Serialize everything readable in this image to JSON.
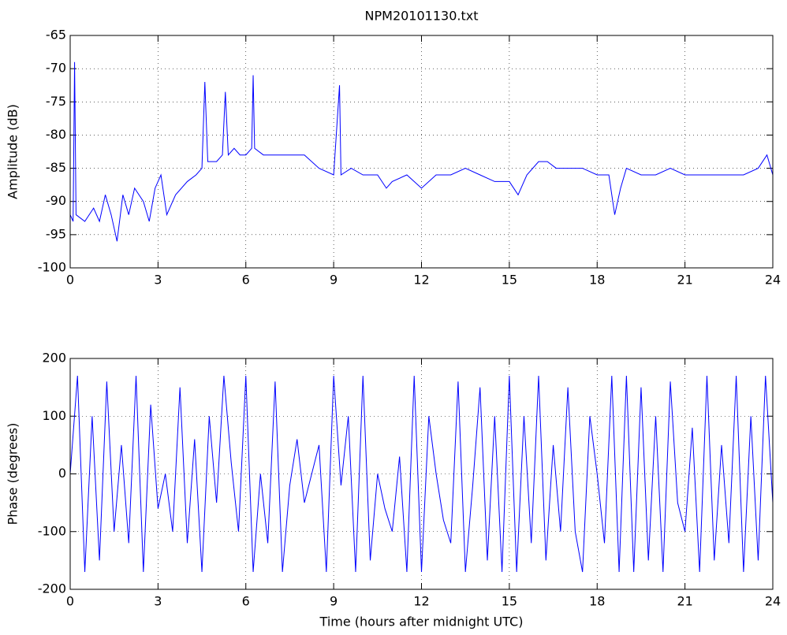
{
  "chart_data": [
    {
      "type": "line",
      "title": "NPM20101130.txt",
      "ylabel": "Amplitude (dB)",
      "x": [
        0,
        0.1,
        0.15,
        0.2,
        0.5,
        0.8,
        1.0,
        1.2,
        1.4,
        1.6,
        1.8,
        2.0,
        2.2,
        2.5,
        2.7,
        2.9,
        3.1,
        3.3,
        3.6,
        4.0,
        4.3,
        4.5,
        4.6,
        4.7,
        5.0,
        5.2,
        5.3,
        5.4,
        5.6,
        5.8,
        6.0,
        6.2,
        6.25,
        6.3,
        6.6,
        7.0,
        7.5,
        8.0,
        8.5,
        9.0,
        9.2,
        9.25,
        9.6,
        10.0,
        10.5,
        10.8,
        11.0,
        11.5,
        12.0,
        12.5,
        13.0,
        13.5,
        14.0,
        14.5,
        15.0,
        15.3,
        15.6,
        16.0,
        16.3,
        16.6,
        17.0,
        17.5,
        18.0,
        18.4,
        18.6,
        18.8,
        19.0,
        19.5,
        20.0,
        20.5,
        21.0,
        21.5,
        22.0,
        22.5,
        23.0,
        23.5,
        23.8,
        24.0
      ],
      "series": [
        {
          "color": "#0000ff",
          "values": [
            -92,
            -93,
            -69,
            -92,
            -93,
            -91,
            -93,
            -89,
            -92,
            -96,
            -89,
            -92,
            -88,
            -90,
            -93,
            -88,
            -86,
            -92,
            -89,
            -87,
            -86,
            -85,
            -72,
            -84,
            -84,
            -83,
            -73.5,
            -83,
            -82,
            -83,
            -83,
            -82,
            -71,
            -82,
            -83,
            -83,
            -83,
            -83,
            -85,
            -86,
            -72.5,
            -86,
            -85,
            -86,
            -86,
            -88,
            -87,
            -86,
            -88,
            -86,
            -86,
            -85,
            -86,
            -87,
            -87,
            -89,
            -86,
            -84,
            -84,
            -85,
            -85,
            -85,
            -86,
            -86,
            -92,
            -88,
            -85,
            -86,
            -86,
            -85,
            -86,
            -86,
            -86,
            -86,
            -86,
            -85,
            -83,
            -86
          ]
        }
      ],
      "xlim": [
        0,
        24
      ],
      "xticks": [
        0,
        3,
        6,
        9,
        12,
        15,
        18,
        21,
        24
      ],
      "ylim": [
        -100,
        -65
      ],
      "yticks": [
        -100,
        -95,
        -90,
        -85,
        -80,
        -75,
        -70,
        -65
      ],
      "grid": true
    },
    {
      "type": "line",
      "ylabel": "Phase (degrees)",
      "xlabel": "Time (hours after midnight UTC)",
      "x": [
        0,
        0.25,
        0.5,
        0.75,
        1,
        1.25,
        1.5,
        1.75,
        2,
        2.25,
        2.5,
        2.75,
        3,
        3.25,
        3.5,
        3.75,
        4,
        4.25,
        4.5,
        4.75,
        5,
        5.25,
        5.5,
        5.75,
        6,
        6.25,
        6.5,
        6.75,
        7,
        7.25,
        7.5,
        7.75,
        8,
        8.25,
        8.5,
        8.75,
        9,
        9.25,
        9.5,
        9.75,
        10,
        10.25,
        10.5,
        10.75,
        11,
        11.25,
        11.5,
        11.75,
        12,
        12.25,
        12.5,
        12.75,
        13,
        13.25,
        13.5,
        13.75,
        14,
        14.25,
        14.5,
        14.75,
        15,
        15.25,
        15.5,
        15.75,
        16,
        16.25,
        16.5,
        16.75,
        17,
        17.25,
        17.5,
        17.75,
        18,
        18.25,
        18.5,
        18.75,
        19,
        19.25,
        19.5,
        19.75,
        20,
        20.25,
        20.5,
        20.75,
        21,
        21.25,
        21.5,
        21.75,
        22,
        22.25,
        22.5,
        22.75,
        23,
        23.25,
        23.5,
        23.75,
        24
      ],
      "series": [
        {
          "color": "#0000ff",
          "values": [
            0,
            170,
            -170,
            100,
            -150,
            160,
            -100,
            50,
            -120,
            170,
            -170,
            120,
            -60,
            0,
            -100,
            150,
            -120,
            60,
            -170,
            100,
            -50,
            170,
            20,
            -100,
            170,
            -170,
            0,
            -120,
            160,
            -170,
            -20,
            60,
            -50,
            0,
            50,
            -170,
            170,
            -20,
            100,
            -170,
            170,
            -150,
            0,
            -60,
            -100,
            30,
            -170,
            170,
            -170,
            100,
            0,
            -80,
            -120,
            160,
            -170,
            -20,
            150,
            -150,
            100,
            -170,
            170,
            -170,
            100,
            -120,
            170,
            -150,
            50,
            -100,
            150,
            -100,
            -170,
            100,
            0,
            -120,
            170,
            -170,
            170,
            -170,
            150,
            -150,
            100,
            -170,
            160,
            -50,
            -100,
            80,
            -170,
            170,
            -150,
            50,
            -120,
            170,
            -170,
            100,
            -150,
            170,
            -50
          ]
        }
      ],
      "xlim": [
        0,
        24
      ],
      "xticks": [
        0,
        3,
        6,
        9,
        12,
        15,
        18,
        21,
        24
      ],
      "ylim": [
        -200,
        200
      ],
      "yticks": [
        -200,
        -100,
        0,
        100,
        200
      ],
      "grid": true
    }
  ]
}
